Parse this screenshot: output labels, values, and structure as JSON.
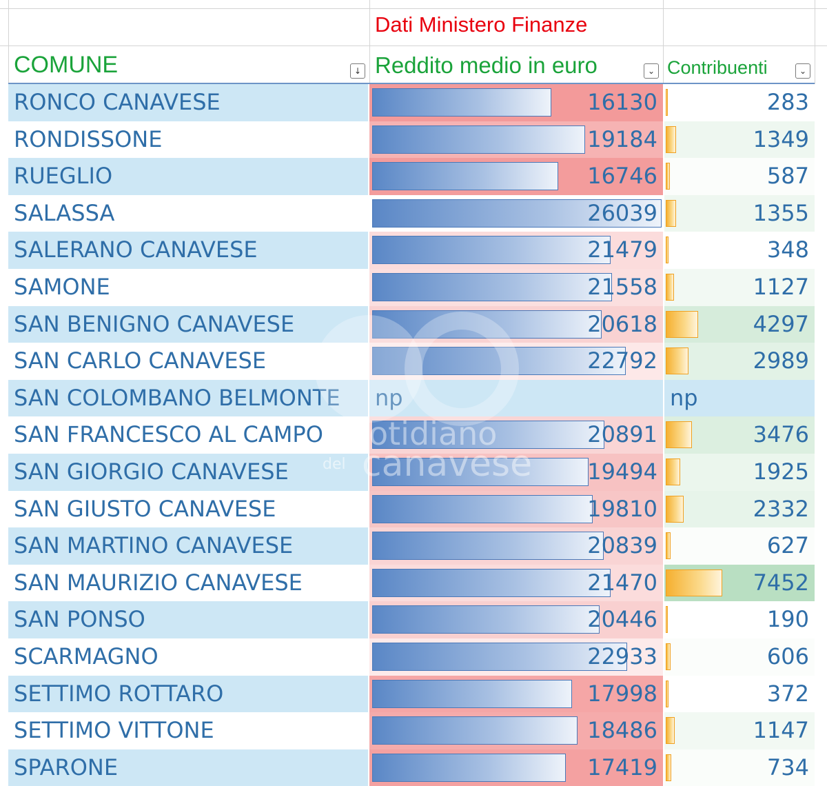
{
  "header": {
    "source_label": "Dati Ministero Finanze",
    "col_comune": "COMUNE",
    "col_reddito": "Reddito medio in euro",
    "col_contribuenti": "Contribuenti",
    "sort_filter_glyph": "↓",
    "filter_glyph": "⌄"
  },
  "scale": {
    "income_max": 26039,
    "count_max": 7452
  },
  "rows": [
    {
      "comune": "RONCO CANAVESE",
      "reddito": 16130,
      "contribuenti": 283,
      "inc_bg": "#f39a9a",
      "cnt_bg": "#ffffff"
    },
    {
      "comune": "RONDISSONE",
      "reddito": 19184,
      "contribuenti": 1349,
      "inc_bg": "#f6b3b3",
      "cnt_bg": "#eef7f0"
    },
    {
      "comune": "RUEGLIO",
      "reddito": 16746,
      "contribuenti": 587,
      "inc_bg": "#f39c9c",
      "cnt_bg": "#fbfdfb"
    },
    {
      "comune": "SALASSA",
      "reddito": 26039,
      "contribuenti": 1355,
      "inc_bg": "#ffffff",
      "cnt_bg": "#eef7f0"
    },
    {
      "comune": "SALERANO CANAVESE",
      "reddito": 21479,
      "contribuenti": 348,
      "inc_bg": "#fbdcdc",
      "cnt_bg": "#ffffff"
    },
    {
      "comune": "SAMONE",
      "reddito": 21558,
      "contribuenti": 1127,
      "inc_bg": "#fbdfdf",
      "cnt_bg": "#f2f9f3"
    },
    {
      "comune": "SAN BENIGNO CANAVESE",
      "reddito": 20618,
      "contribuenti": 4297,
      "inc_bg": "#f9d2d2",
      "cnt_bg": "#d6ecdb"
    },
    {
      "comune": "SAN CARLO CANAVESE",
      "reddito": 22792,
      "contribuenti": 2989,
      "inc_bg": "#fde8e8",
      "cnt_bg": "#e2f2e6"
    },
    {
      "comune": "SAN COLOMBANO BELMONTE",
      "reddito": "np",
      "contribuenti": "np",
      "inc_bg": "#cde7f5",
      "cnt_bg": "#cde7f5"
    },
    {
      "comune": "SAN FRANCESCO AL CAMPO",
      "reddito": 20891,
      "contribuenti": 3476,
      "inc_bg": "#f9d5d5",
      "cnt_bg": "#dcefe0"
    },
    {
      "comune": "SAN GIORGIO CANAVESE",
      "reddito": 19494,
      "contribuenti": 1925,
      "inc_bg": "#f7c2c2",
      "cnt_bg": "#ebf6ed"
    },
    {
      "comune": "SAN GIUSTO CANAVESE",
      "reddito": 19810,
      "contribuenti": 2332,
      "inc_bg": "#f7c6c6",
      "cnt_bg": "#e7f4ea"
    },
    {
      "comune": "SAN MARTINO CANAVESE",
      "reddito": 20839,
      "contribuenti": 627,
      "inc_bg": "#f9d4d4",
      "cnt_bg": "#fbfdfb"
    },
    {
      "comune": "SAN MAURIZIO CANAVESE",
      "reddito": 21470,
      "contribuenti": 7452,
      "inc_bg": "#fbdcdc",
      "cnt_bg": "#b9dfc2"
    },
    {
      "comune": "SAN PONSO",
      "reddito": 20446,
      "contribuenti": 190,
      "inc_bg": "#f9d0d0",
      "cnt_bg": "#ffffff"
    },
    {
      "comune": "SCARMAGNO",
      "reddito": 22933,
      "contribuenti": 606,
      "inc_bg": "#fdeaea",
      "cnt_bg": "#fbfdfb"
    },
    {
      "comune": "SETTIMO ROTTARO",
      "reddito": 17998,
      "contribuenti": 372,
      "inc_bg": "#f5a6a6",
      "cnt_bg": "#ffffff"
    },
    {
      "comune": "SETTIMO VITTONE",
      "reddito": 18486,
      "contribuenti": 1147,
      "inc_bg": "#f5abab",
      "cnt_bg": "#f2f9f3"
    },
    {
      "comune": "SPARONE",
      "reddito": 17419,
      "contribuenti": 734,
      "inc_bg": "#f4a1a1",
      "cnt_bg": "#fafdfa"
    }
  ],
  "watermark": {
    "line1": "otidiano",
    "line2": "canavese",
    "small": "del"
  },
  "colors": {
    "title_red": "#e8000e",
    "header_green": "#1aa33a",
    "text_blue": "#2f6ea8",
    "band_blue": "#cde7f5",
    "band_white": "#ffffff"
  }
}
